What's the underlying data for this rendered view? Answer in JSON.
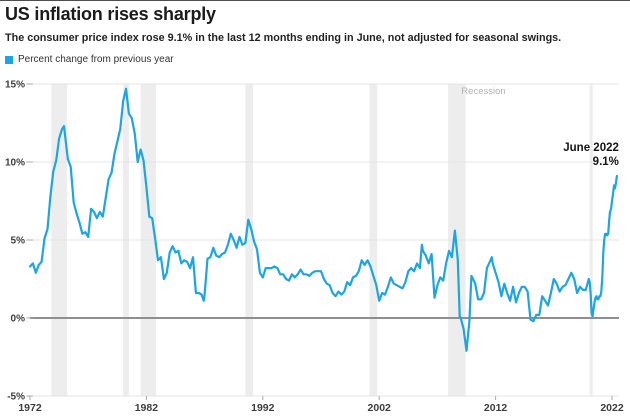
{
  "header": {
    "title": "US inflation rises sharply",
    "subtitle": "The consumer price index rose 9.1% in the last 12 months ending in June, not adjusted for seasonal swings.",
    "legend_label": "Percent change from previous year"
  },
  "colors": {
    "line": "#1da5e3",
    "recession_band": "#ededed",
    "grid": "#e4e4e4",
    "zero_line": "#8f8f8f",
    "tick": "#a9a9a9",
    "axis_text": "#3d3d3d",
    "recession_label": "#b4b4b4",
    "annotation": "#161616"
  },
  "chart_data": {
    "type": "line",
    "title": "US inflation rises sharply",
    "series_name": "Percent change from previous year",
    "xlabel": "",
    "ylabel": "Percent change from previous year",
    "xlim": [
      1972,
      2022.6
    ],
    "ylim": [
      -5,
      15
    ],
    "grid": "horizontal",
    "legend_position": "top-left",
    "y_ticks": [
      {
        "v": 15,
        "label": "15%"
      },
      {
        "v": 10,
        "label": "10%"
      },
      {
        "v": 5,
        "label": "5%"
      },
      {
        "v": 0,
        "label": "0%"
      },
      {
        "v": -5,
        "label": "-5%"
      }
    ],
    "x_ticks": [
      {
        "v": 1972,
        "label": "1972"
      },
      {
        "v": 1982,
        "label": "1982"
      },
      {
        "v": 1992,
        "label": "1992"
      },
      {
        "v": 2002,
        "label": "2002"
      },
      {
        "v": 2012,
        "label": "2012"
      },
      {
        "v": 2022,
        "label": "2022"
      }
    ],
    "recession_label": {
      "text": "Recession",
      "x": 2009.05,
      "y": 14.35
    },
    "recessions": [
      [
        1973.83,
        1975.17
      ],
      [
        1980.0,
        1980.5
      ],
      [
        1981.5,
        1982.83
      ],
      [
        1990.5,
        1991.17
      ],
      [
        2001.17,
        2001.83
      ],
      [
        2007.92,
        2009.42
      ],
      [
        2020.08,
        2020.25
      ]
    ],
    "annotation": {
      "label": "June 2022",
      "value_label": "9.1%",
      "x": 2022.42,
      "y": 9.1
    },
    "points": [
      [
        1972.0,
        3.3
      ],
      [
        1972.25,
        3.5
      ],
      [
        1972.5,
        2.9
      ],
      [
        1972.75,
        3.4
      ],
      [
        1973.0,
        3.6
      ],
      [
        1973.25,
        5.1
      ],
      [
        1973.5,
        5.7
      ],
      [
        1973.75,
        7.8
      ],
      [
        1974.0,
        9.4
      ],
      [
        1974.25,
        10.1
      ],
      [
        1974.5,
        11.5
      ],
      [
        1974.75,
        12.1
      ],
      [
        1974.92,
        12.3
      ],
      [
        1975.0,
        11.8
      ],
      [
        1975.25,
        10.2
      ],
      [
        1975.5,
        9.7
      ],
      [
        1975.75,
        7.4
      ],
      [
        1976.0,
        6.7
      ],
      [
        1976.25,
        6.1
      ],
      [
        1976.5,
        5.4
      ],
      [
        1976.75,
        5.5
      ],
      [
        1977.0,
        5.2
      ],
      [
        1977.25,
        7.0
      ],
      [
        1977.5,
        6.8
      ],
      [
        1977.75,
        6.4
      ],
      [
        1978.0,
        6.8
      ],
      [
        1978.25,
        6.5
      ],
      [
        1978.5,
        7.7
      ],
      [
        1978.75,
        8.9
      ],
      [
        1979.0,
        9.3
      ],
      [
        1979.25,
        10.5
      ],
      [
        1979.5,
        11.3
      ],
      [
        1979.75,
        12.1
      ],
      [
        1979.92,
        13.3
      ],
      [
        1980.0,
        13.9
      ],
      [
        1980.25,
        14.7
      ],
      [
        1980.5,
        13.1
      ],
      [
        1980.75,
        12.8
      ],
      [
        1981.0,
        11.8
      ],
      [
        1981.25,
        10.0
      ],
      [
        1981.5,
        10.8
      ],
      [
        1981.75,
        10.1
      ],
      [
        1982.0,
        8.4
      ],
      [
        1982.25,
        6.5
      ],
      [
        1982.5,
        6.4
      ],
      [
        1982.75,
        5.1
      ],
      [
        1983.0,
        3.7
      ],
      [
        1983.25,
        3.9
      ],
      [
        1983.5,
        2.5
      ],
      [
        1983.75,
        2.9
      ],
      [
        1984.0,
        4.2
      ],
      [
        1984.25,
        4.6
      ],
      [
        1984.5,
        4.2
      ],
      [
        1984.75,
        4.3
      ],
      [
        1985.0,
        3.5
      ],
      [
        1985.25,
        3.7
      ],
      [
        1985.5,
        3.6
      ],
      [
        1985.75,
        3.2
      ],
      [
        1986.0,
        3.9
      ],
      [
        1986.25,
        1.6
      ],
      [
        1986.5,
        1.6
      ],
      [
        1986.75,
        1.5
      ],
      [
        1986.92,
        1.1
      ],
      [
        1987.0,
        1.5
      ],
      [
        1987.25,
        3.8
      ],
      [
        1987.5,
        3.9
      ],
      [
        1987.75,
        4.5
      ],
      [
        1988.0,
        4.0
      ],
      [
        1988.25,
        3.9
      ],
      [
        1988.5,
        4.1
      ],
      [
        1988.75,
        4.2
      ],
      [
        1989.0,
        4.7
      ],
      [
        1989.25,
        5.4
      ],
      [
        1989.5,
        5.0
      ],
      [
        1989.75,
        4.5
      ],
      [
        1990.0,
        5.2
      ],
      [
        1990.25,
        4.7
      ],
      [
        1990.5,
        4.8
      ],
      [
        1990.75,
        6.3
      ],
      [
        1991.0,
        5.7
      ],
      [
        1991.25,
        4.9
      ],
      [
        1991.5,
        4.4
      ],
      [
        1991.75,
        2.9
      ],
      [
        1992.0,
        2.6
      ],
      [
        1992.25,
        3.2
      ],
      [
        1992.5,
        3.2
      ],
      [
        1992.75,
        3.2
      ],
      [
        1993.0,
        3.3
      ],
      [
        1993.25,
        3.2
      ],
      [
        1993.5,
        2.8
      ],
      [
        1993.75,
        2.8
      ],
      [
        1994.0,
        2.5
      ],
      [
        1994.25,
        2.4
      ],
      [
        1994.5,
        2.8
      ],
      [
        1994.75,
        2.6
      ],
      [
        1995.0,
        2.8
      ],
      [
        1995.25,
        3.1
      ],
      [
        1995.5,
        2.8
      ],
      [
        1995.75,
        2.8
      ],
      [
        1996.0,
        2.7
      ],
      [
        1996.25,
        2.9
      ],
      [
        1996.5,
        3.0
      ],
      [
        1996.75,
        3.0
      ],
      [
        1997.0,
        3.0
      ],
      [
        1997.25,
        2.5
      ],
      [
        1997.5,
        2.2
      ],
      [
        1997.75,
        2.1
      ],
      [
        1998.0,
        1.6
      ],
      [
        1998.25,
        1.4
      ],
      [
        1998.5,
        1.7
      ],
      [
        1998.75,
        1.5
      ],
      [
        1999.0,
        1.7
      ],
      [
        1999.25,
        2.3
      ],
      [
        1999.5,
        2.1
      ],
      [
        1999.75,
        2.6
      ],
      [
        2000.0,
        2.7
      ],
      [
        2000.25,
        3.0
      ],
      [
        2000.5,
        3.7
      ],
      [
        2000.75,
        3.4
      ],
      [
        2001.0,
        3.7
      ],
      [
        2001.25,
        3.3
      ],
      [
        2001.5,
        2.7
      ],
      [
        2001.75,
        2.1
      ],
      [
        2002.0,
        1.1
      ],
      [
        2002.25,
        1.6
      ],
      [
        2002.5,
        1.5
      ],
      [
        2002.75,
        2.0
      ],
      [
        2003.0,
        2.6
      ],
      [
        2003.25,
        2.2
      ],
      [
        2003.5,
        2.1
      ],
      [
        2003.75,
        2.0
      ],
      [
        2004.0,
        1.9
      ],
      [
        2004.25,
        2.3
      ],
      [
        2004.5,
        3.0
      ],
      [
        2004.75,
        3.2
      ],
      [
        2005.0,
        3.0
      ],
      [
        2005.25,
        3.5
      ],
      [
        2005.5,
        3.2
      ],
      [
        2005.67,
        4.7
      ],
      [
        2005.75,
        4.3
      ],
      [
        2006.0,
        4.0
      ],
      [
        2006.25,
        3.5
      ],
      [
        2006.5,
        4.1
      ],
      [
        2006.75,
        1.3
      ],
      [
        2007.0,
        2.1
      ],
      [
        2007.25,
        2.6
      ],
      [
        2007.5,
        2.4
      ],
      [
        2007.75,
        3.5
      ],
      [
        2008.0,
        4.3
      ],
      [
        2008.25,
        3.9
      ],
      [
        2008.5,
        5.6
      ],
      [
        2008.75,
        3.7
      ],
      [
        2008.92,
        0.1
      ],
      [
        2009.0,
        0.0
      ],
      [
        2009.25,
        -0.7
      ],
      [
        2009.5,
        -2.1
      ],
      [
        2009.75,
        -0.2
      ],
      [
        2009.92,
        2.7
      ],
      [
        2010.0,
        2.6
      ],
      [
        2010.25,
        2.2
      ],
      [
        2010.5,
        1.2
      ],
      [
        2010.75,
        1.2
      ],
      [
        2011.0,
        1.6
      ],
      [
        2011.25,
        3.2
      ],
      [
        2011.5,
        3.6
      ],
      [
        2011.67,
        3.9
      ],
      [
        2011.75,
        3.5
      ],
      [
        2012.0,
        2.9
      ],
      [
        2012.25,
        2.3
      ],
      [
        2012.5,
        1.4
      ],
      [
        2012.75,
        2.2
      ],
      [
        2013.0,
        1.6
      ],
      [
        2013.25,
        1.1
      ],
      [
        2013.5,
        2.0
      ],
      [
        2013.75,
        1.0
      ],
      [
        2014.0,
        1.6
      ],
      [
        2014.25,
        2.0
      ],
      [
        2014.5,
        2.0
      ],
      [
        2014.75,
        1.7
      ],
      [
        2015.0,
        -0.1
      ],
      [
        2015.25,
        -0.2
      ],
      [
        2015.5,
        0.2
      ],
      [
        2015.75,
        0.2
      ],
      [
        2016.0,
        1.4
      ],
      [
        2016.25,
        1.1
      ],
      [
        2016.5,
        0.8
      ],
      [
        2016.75,
        1.6
      ],
      [
        2017.0,
        2.5
      ],
      [
        2017.25,
        2.2
      ],
      [
        2017.5,
        1.7
      ],
      [
        2017.75,
        2.0
      ],
      [
        2018.0,
        2.1
      ],
      [
        2018.25,
        2.5
      ],
      [
        2018.5,
        2.9
      ],
      [
        2018.75,
        2.5
      ],
      [
        2019.0,
        1.6
      ],
      [
        2019.25,
        2.0
      ],
      [
        2019.5,
        1.8
      ],
      [
        2019.75,
        1.8
      ],
      [
        2020.0,
        2.5
      ],
      [
        2020.08,
        2.3
      ],
      [
        2020.17,
        1.5
      ],
      [
        2020.25,
        0.3
      ],
      [
        2020.33,
        0.1
      ],
      [
        2020.42,
        0.6
      ],
      [
        2020.5,
        1.0
      ],
      [
        2020.58,
        1.3
      ],
      [
        2020.67,
        1.4
      ],
      [
        2020.75,
        1.2
      ],
      [
        2020.83,
        1.2
      ],
      [
        2020.92,
        1.4
      ],
      [
        2021.0,
        1.4
      ],
      [
        2021.08,
        1.7
      ],
      [
        2021.17,
        2.6
      ],
      [
        2021.25,
        4.2
      ],
      [
        2021.33,
        5.0
      ],
      [
        2021.42,
        5.4
      ],
      [
        2021.5,
        5.4
      ],
      [
        2021.58,
        5.3
      ],
      [
        2021.67,
        5.4
      ],
      [
        2021.75,
        6.2
      ],
      [
        2021.83,
        6.8
      ],
      [
        2021.92,
        7.0
      ],
      [
        2022.0,
        7.5
      ],
      [
        2022.08,
        7.9
      ],
      [
        2022.17,
        8.5
      ],
      [
        2022.25,
        8.3
      ],
      [
        2022.33,
        8.6
      ],
      [
        2022.42,
        9.1
      ]
    ]
  }
}
